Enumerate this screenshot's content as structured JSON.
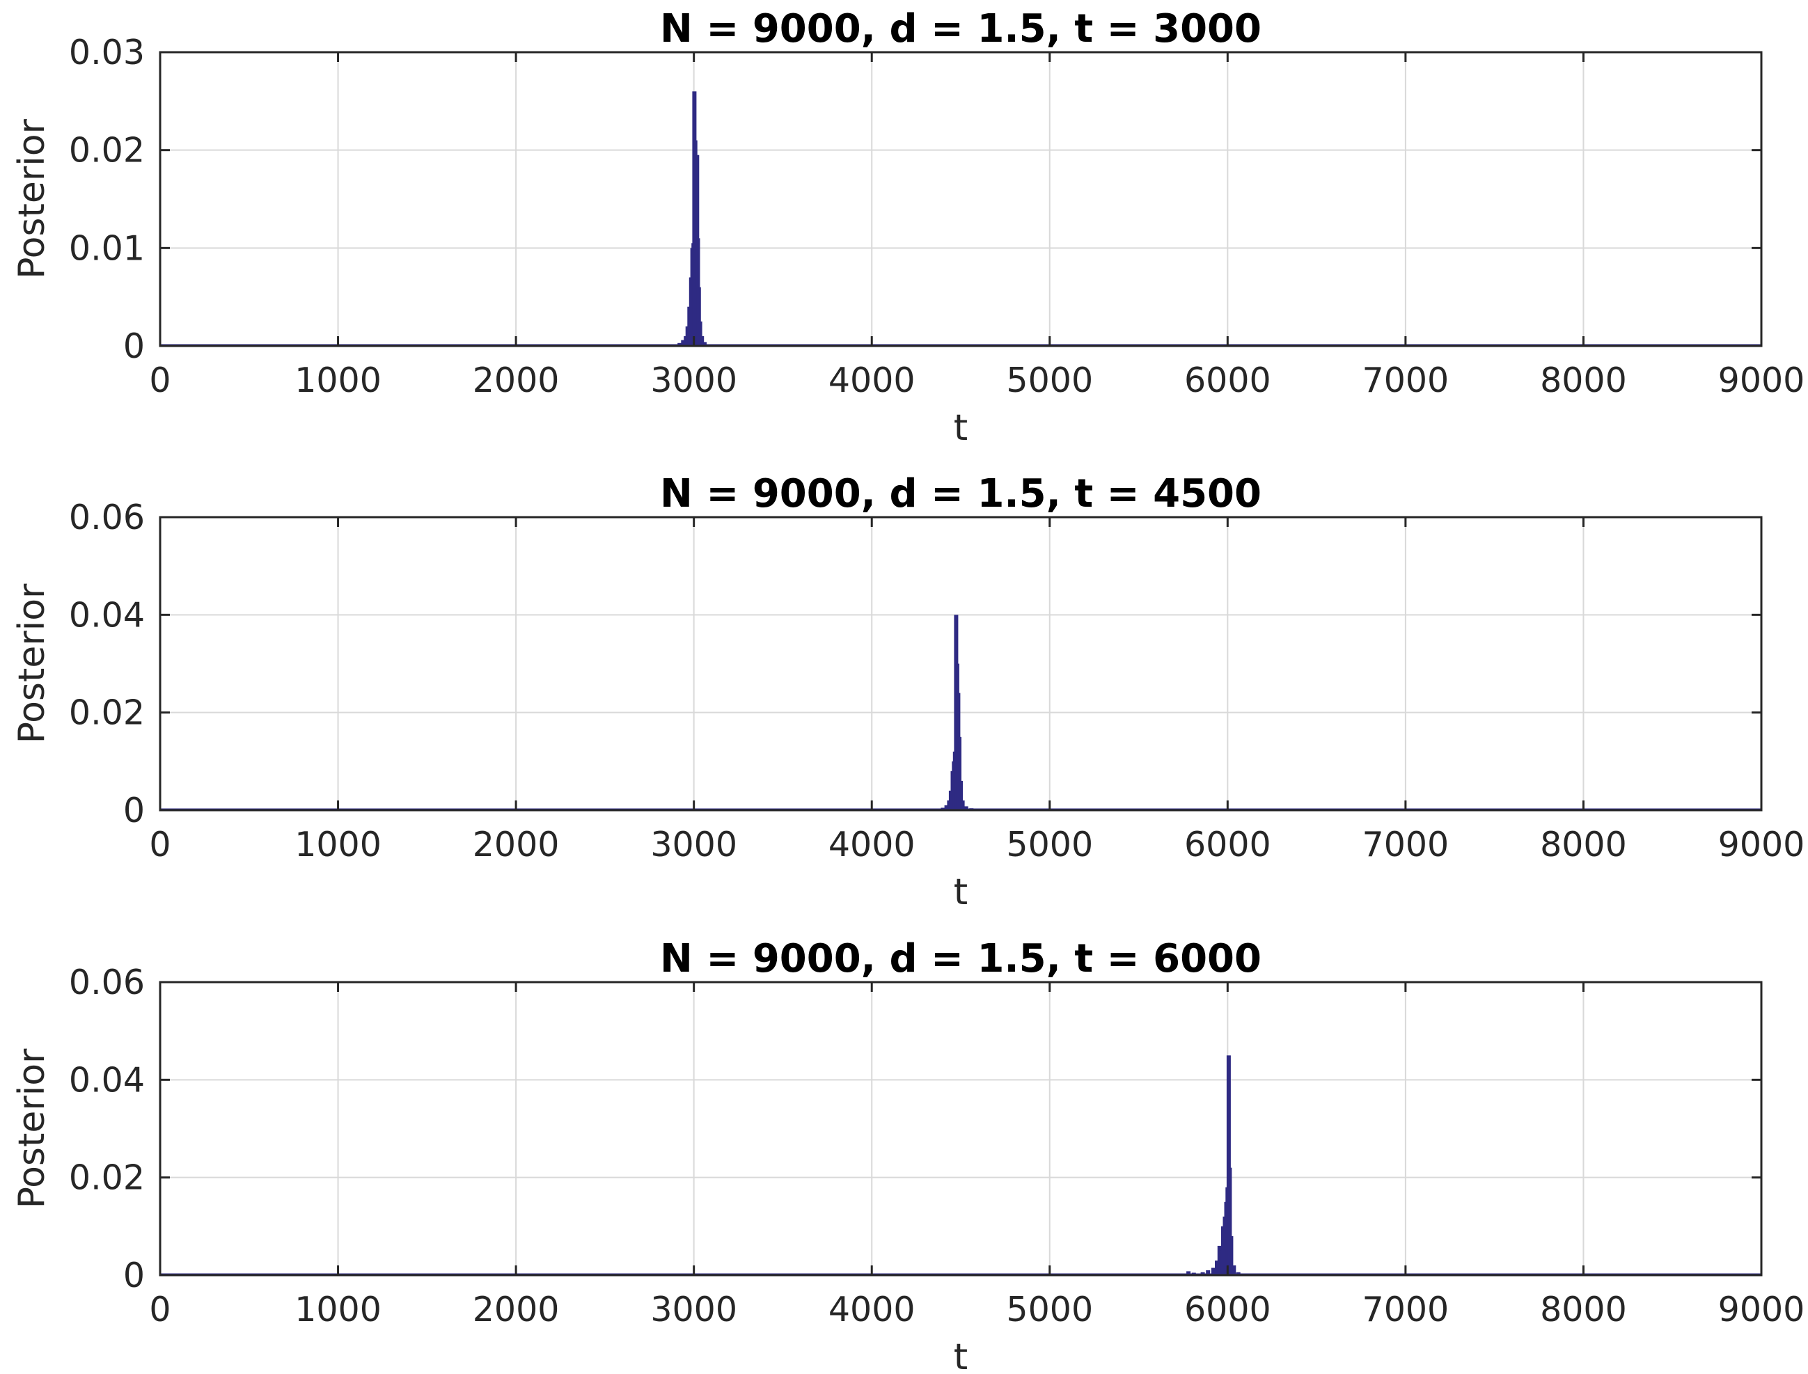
{
  "chart_data": [
    {
      "type": "bar",
      "title": "N = 9000, d = 1.5, t = 3000",
      "xlabel": "t",
      "ylabel": "Posterior",
      "xlim": [
        0,
        9000
      ],
      "ylim": [
        0,
        0.03
      ],
      "xticks": [
        "0",
        "1000",
        "2000",
        "3000",
        "4000",
        "5000",
        "6000",
        "7000",
        "8000",
        "9000"
      ],
      "yticks": [
        "0",
        "0.01",
        "0.02",
        "0.03"
      ],
      "grid": true,
      "color": "#2e2a83",
      "x": [
        2920,
        2940,
        2955,
        2965,
        2975,
        2985,
        2992,
        2998,
        3003,
        3008,
        3013,
        3018,
        3023,
        3028,
        3035,
        3045,
        3060,
        3080
      ],
      "values": [
        0.0003,
        0.0006,
        0.001,
        0.002,
        0.004,
        0.007,
        0.01,
        0.0105,
        0.026,
        0.021,
        0.0125,
        0.0195,
        0.011,
        0.006,
        0.0025,
        0.001,
        0.0004,
        0.0001
      ]
    },
    {
      "type": "bar",
      "title": "N = 9000, d = 1.5, t = 4500",
      "xlabel": "t",
      "ylabel": "Posterior",
      "xlim": [
        0,
        9000
      ],
      "ylim": [
        0,
        0.06
      ],
      "xticks": [
        "0",
        "1000",
        "2000",
        "3000",
        "4000",
        "5000",
        "6000",
        "7000",
        "8000",
        "9000"
      ],
      "yticks": [
        "0",
        "0.02",
        "0.04",
        "0.06"
      ],
      "grid": true,
      "color": "#2e2a83",
      "x": [
        4400,
        4420,
        4435,
        4445,
        4455,
        4462,
        4468,
        4474,
        4480,
        4486,
        4492,
        4500,
        4510,
        4530,
        4560,
        4600
      ],
      "values": [
        0.0005,
        0.001,
        0.002,
        0.004,
        0.008,
        0.01,
        0.012,
        0.04,
        0.03,
        0.024,
        0.015,
        0.006,
        0.002,
        0.0008,
        0.0004,
        0.0002
      ]
    },
    {
      "type": "bar",
      "title": "N = 9000, d = 1.5, t = 6000",
      "xlabel": "t",
      "ylabel": "Posterior",
      "xlim": [
        0,
        9000
      ],
      "ylim": [
        0,
        0.06
      ],
      "xticks": [
        "0",
        "1000",
        "2000",
        "3000",
        "4000",
        "5000",
        "6000",
        "7000",
        "8000",
        "9000"
      ],
      "yticks": [
        "0",
        "0.02",
        "0.04",
        "0.06"
      ],
      "grid": true,
      "color": "#2e2a83",
      "x": [
        5780,
        5810,
        5860,
        5890,
        5920,
        5940,
        5955,
        5965,
        5975,
        5985,
        5993,
        6000,
        6006,
        6012,
        6020,
        6035,
        6060
      ],
      "values": [
        0.0008,
        0.0005,
        0.0006,
        0.001,
        0.0015,
        0.003,
        0.006,
        0.005,
        0.01,
        0.012,
        0.015,
        0.018,
        0.045,
        0.022,
        0.008,
        0.002,
        0.0006
      ]
    }
  ]
}
